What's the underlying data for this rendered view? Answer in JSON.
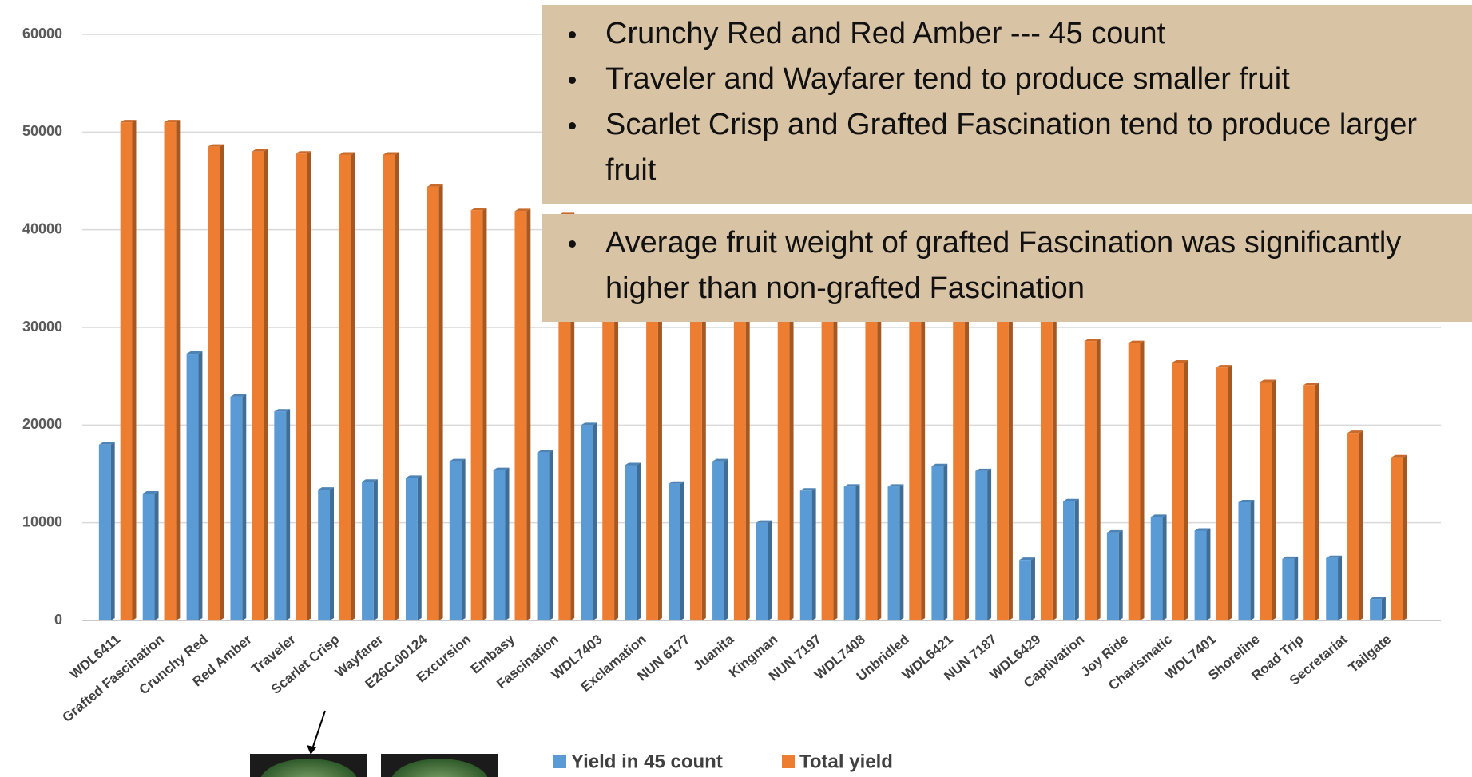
{
  "chart_data": {
    "type": "bar",
    "categories": [
      "WDL6411",
      "Grafted Fascination",
      "Crunchy Red",
      "Red Amber",
      "Traveler",
      "Scarlet Crisp",
      "Wayfarer",
      "E26C.00124",
      "Excursion",
      "Embasy",
      "Fascination",
      "WDL7403",
      "Exclamation",
      "NUN 6177",
      "Juanita",
      "Kingman",
      "NUN 7197",
      "WDL7408",
      "Unbridled",
      "WDL6421",
      "NUN 7187",
      "WDL6429",
      "Captivation",
      "Joy Ride",
      "Charismatic",
      "WDL7401",
      "Shoreline",
      "Road Trip",
      "Secretariat",
      "Tailgate"
    ],
    "series": [
      {
        "name": "Yield in 45 count",
        "color": "#5b9bd5",
        "values": [
          18000,
          13000,
          27300,
          22900,
          21400,
          13400,
          14200,
          14600,
          16300,
          15400,
          17200,
          20000,
          15900,
          14000,
          16300,
          10000,
          13300,
          13700,
          13700,
          15800,
          15300,
          6200,
          12200,
          9000,
          10600,
          9200,
          12100,
          6300,
          6400,
          2200
        ]
      },
      {
        "name": "Total yield",
        "color": "#ed7d31",
        "values": [
          51000,
          51000,
          48500,
          48000,
          47800,
          47700,
          47700,
          44400,
          42000,
          41900,
          41500,
          40000,
          38000,
          37000,
          36000,
          35000,
          34500,
          34000,
          33500,
          33000,
          32500,
          32000,
          28600,
          28400,
          26400,
          25900,
          24400,
          24100,
          19200,
          16700
        ]
      }
    ],
    "ylim": [
      0,
      60000
    ],
    "yticks": [
      0,
      10000,
      20000,
      30000,
      40000,
      50000,
      60000
    ],
    "grid": true,
    "legend": "bottom",
    "annotations": [
      [
        "Crunchy Red and Red Amber --- 45 count",
        "Traveler and Wayfarer tend to produce smaller fruit",
        "Scarlet Crisp and Grafted Fascination tend to produce larger fruit"
      ],
      [
        "Average fruit weight of grafted Fascination was significantly higher than non-grafted Fascination"
      ]
    ]
  }
}
